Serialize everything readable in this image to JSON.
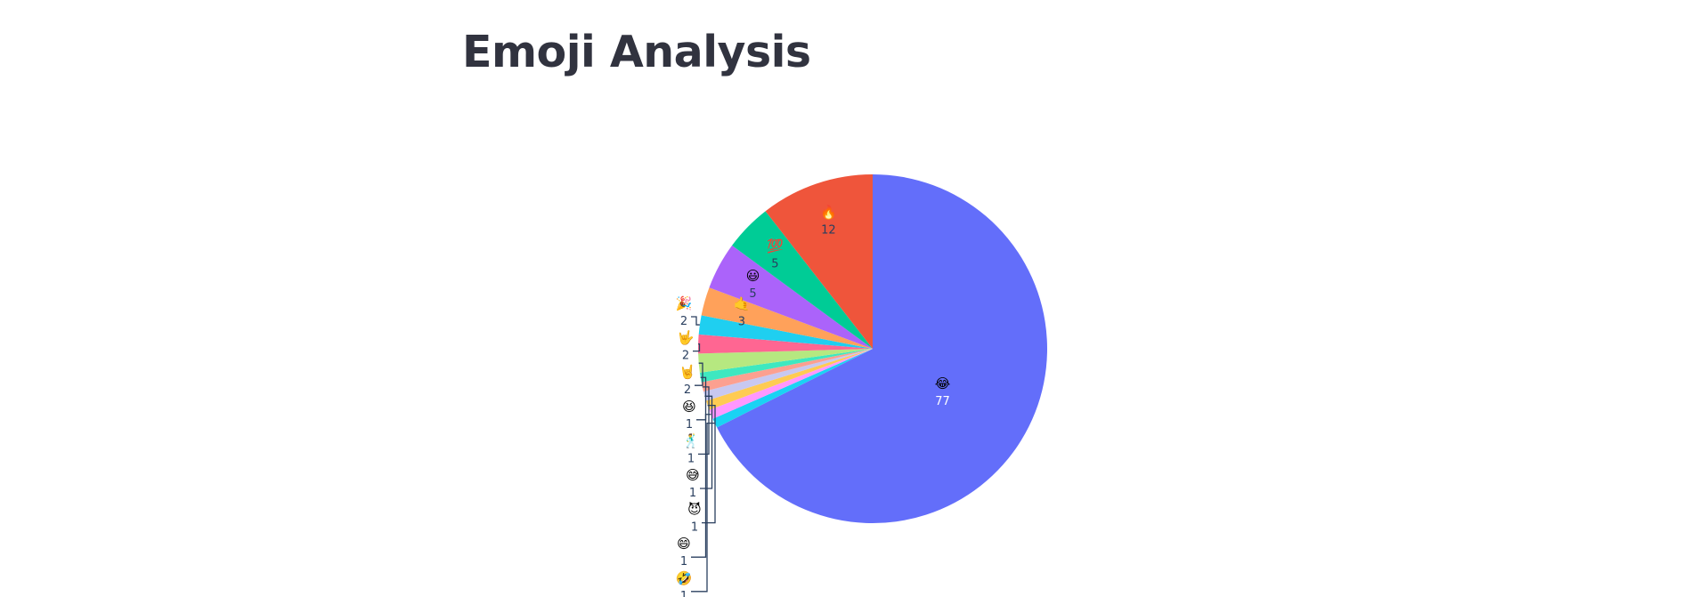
{
  "page": {
    "title": "Emoji Analysis"
  },
  "chart_data": {
    "type": "pie",
    "title": "",
    "direction": "clockwise",
    "rotation_start": "12 o'clock",
    "textinfo": "label+value",
    "slices": [
      {
        "label": "😂",
        "value": 77,
        "color": "#636efa",
        "text_color": "#ffffff",
        "text_position": "inside"
      },
      {
        "label": "🤣",
        "value": 1,
        "color": "#19d3f3",
        "text_color": "#2a3f5f",
        "text_position": "outside"
      },
      {
        "label": "😄",
        "value": 1,
        "color": "#FF97FF",
        "text_color": "#2a3f5f",
        "text_position": "outside"
      },
      {
        "label": "😈",
        "value": 1,
        "color": "#FECB52",
        "text_color": "#2a3f5f",
        "text_position": "outside"
      },
      {
        "label": "😅",
        "value": 1,
        "color": "#c8c8f0",
        "text_color": "#2a3f5f",
        "text_position": "outside"
      },
      {
        "label": "🕺",
        "value": 1,
        "color": "#fca090",
        "text_color": "#2a3f5f",
        "text_position": "outside"
      },
      {
        "label": "😆",
        "value": 1,
        "color": "#3ee8c0",
        "text_color": "#2a3f5f",
        "text_position": "outside"
      },
      {
        "label": "🤘",
        "value": 2,
        "color": "#b6e880",
        "text_color": "#2a3f5f",
        "text_position": "outside"
      },
      {
        "label": "🤟",
        "value": 2,
        "color": "#ff6692",
        "text_color": "#2a3f5f",
        "text_position": "outside"
      },
      {
        "label": "🎉",
        "value": 2,
        "color": "#1fcff0",
        "text_color": "#2a3f5f",
        "text_position": "outside"
      },
      {
        "label": "🤙",
        "value": 3,
        "color": "#ffa15a",
        "text_color": "#2a3f5f",
        "text_position": "inside"
      },
      {
        "label": "😃",
        "value": 5,
        "color": "#ab63fa",
        "text_color": "#2a3f5f",
        "text_position": "inside"
      },
      {
        "label": "💯",
        "value": 5,
        "color": "#00cc96",
        "text_color": "#2a3f5f",
        "text_position": "inside"
      },
      {
        "label": "🔥",
        "value": 12,
        "color": "#ef553b",
        "text_color": "#2a3f5f",
        "text_position": "inside"
      }
    ]
  }
}
